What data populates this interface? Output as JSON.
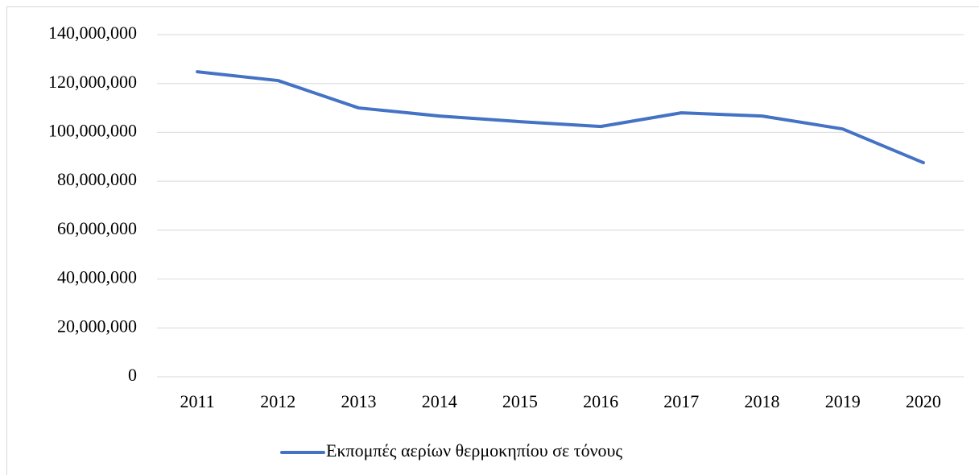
{
  "chart_data": {
    "type": "line",
    "categories": [
      "2011",
      "2012",
      "2013",
      "2014",
      "2015",
      "2016",
      "2017",
      "2018",
      "2019",
      "2020"
    ],
    "series": [
      {
        "name": "Εκπομπές αερίων θερμοκηπίου σε τόνους",
        "color": "#4472c4",
        "values": [
          124800000,
          121200000,
          110000000,
          106700000,
          104400000,
          102400000,
          108000000,
          106700000,
          101400000,
          87600000
        ]
      }
    ],
    "ylim": [
      0,
      140000000
    ],
    "yticks": [
      0,
      {
        "value": 20000000,
        "label": "20,000,000"
      },
      {
        "value": 40000000,
        "label": "40,000,000"
      },
      {
        "value": 60000000,
        "label": "60,000,000"
      },
      {
        "value": 80000000,
        "label": "80,000,000"
      },
      {
        "value": 100000000,
        "label": "100,000,000"
      },
      {
        "value": 120000000,
        "label": "120,000,000"
      },
      {
        "value": 140000000,
        "label": "140,000,000"
      }
    ],
    "grid": true,
    "legend": "bottom"
  }
}
